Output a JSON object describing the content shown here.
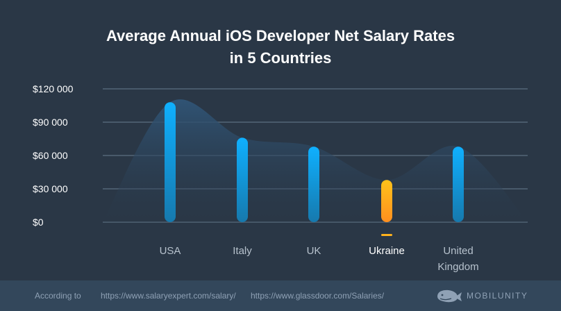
{
  "chart_data": {
    "type": "bar",
    "title_lines": [
      "Average Annual iOS Developer Net Salary Rates",
      "in 5 Countries"
    ],
    "categories": [
      [
        "USA"
      ],
      [
        "Italy"
      ],
      [
        "UK"
      ],
      [
        "Ukraine"
      ],
      [
        "United",
        "Kingdom"
      ]
    ],
    "values": [
      108000,
      76000,
      68000,
      38000,
      68000
    ],
    "highlight_index": 3,
    "yticks": [
      "$120 000",
      "$90 000",
      "$60 000",
      "$30 000",
      "$0"
    ],
    "ytick_values": [
      120000,
      90000,
      60000,
      30000,
      0
    ],
    "ylim": [
      0,
      120000
    ],
    "grid": true,
    "colors": {
      "bar": "#1aa7ef",
      "highlight": "#ffb21c",
      "area": "#2e4d6b",
      "grid": "#495a6b",
      "tick": "#ffffff",
      "category": "#b7c2cd"
    }
  },
  "footer": {
    "according_to": "According to",
    "source_1": "https://www.salaryexpert.com/salary/",
    "source_2": "https://www.glassdoor.com/Salaries/",
    "brand": "MOBILUNITY",
    "brand_icon": "whale-icon"
  }
}
